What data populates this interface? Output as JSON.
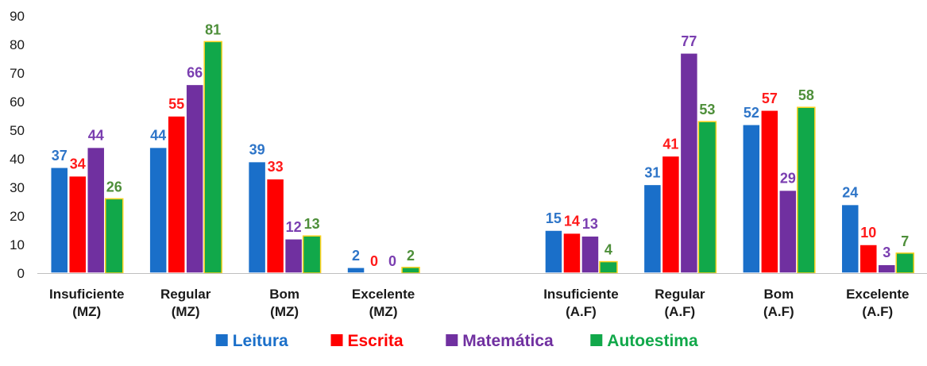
{
  "chart_data": {
    "type": "bar",
    "title": "",
    "xlabel": "",
    "ylabel": "",
    "ylim": [
      0,
      90
    ],
    "yticks": [
      0,
      10,
      20,
      30,
      40,
      50,
      60,
      70,
      80,
      90
    ],
    "grid": false,
    "legend_position": "bottom",
    "categories": [
      "Insuficiente (MZ)",
      "Regular (MZ)",
      "Bom (MZ)",
      "Excelente (MZ)",
      "",
      "Insuficiente (A.F)",
      "Regular (A.F)",
      "Bom (A.F)",
      "Excelente (A.F)"
    ],
    "series": [
      {
        "name": "Leitura",
        "color": "#1a6fc9",
        "label_color": "#2e75c8",
        "values": [
          37,
          44,
          39,
          2,
          null,
          15,
          31,
          52,
          24
        ]
      },
      {
        "name": "Escrita",
        "color": "#ff0000",
        "label_color": "#ff1a1a",
        "values": [
          34,
          55,
          33,
          0,
          null,
          14,
          41,
          57,
          10
        ]
      },
      {
        "name": "Matemática",
        "color": "#7030a0",
        "label_color": "#7a3eb0",
        "values": [
          44,
          66,
          12,
          0,
          null,
          13,
          77,
          29,
          3
        ]
      },
      {
        "name": "Autoestima",
        "color": "#11a84a",
        "label_color": "#4e8f3a",
        "values": [
          26,
          81,
          13,
          2,
          null,
          4,
          53,
          58,
          7
        ]
      }
    ]
  }
}
